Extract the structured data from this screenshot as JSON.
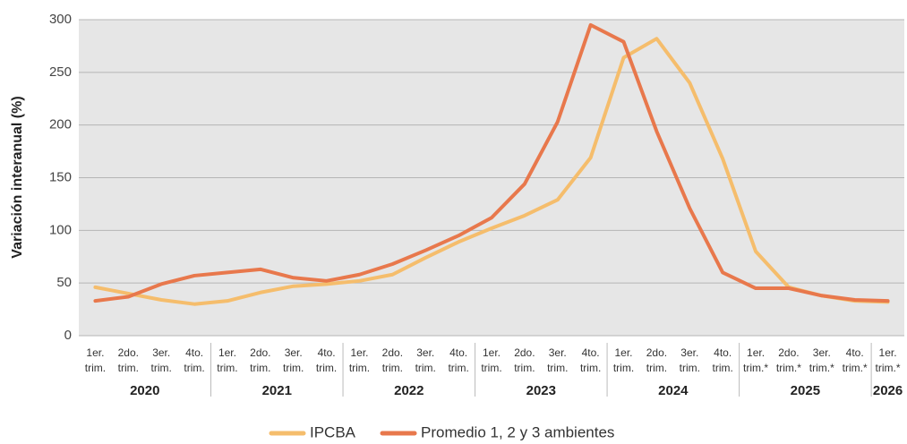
{
  "chart_data": {
    "type": "line",
    "y_label": "Variación interanual (%)",
    "categories": [
      "1er. trim.",
      "2do. trim.",
      "3er. trim.",
      "4to. trim.",
      "1er. trim.",
      "2do. trim.",
      "3er. trim.",
      "4to. trim.",
      "1er. trim.",
      "2do. trim.",
      "3er. trim.",
      "4to. trim.",
      "1er. trim.",
      "2do. trim.",
      "3er. trim.",
      "4to. trim.",
      "1er. trim.",
      "2do. trim.",
      "3er. trim.",
      "4to. trim.",
      "1er. trim.*",
      "2do. trim.*",
      "3er. trim.*",
      "4to. trim.*",
      "1er. trim.*"
    ],
    "groups": [
      {
        "label": "2020",
        "size": 4
      },
      {
        "label": "2021",
        "size": 4
      },
      {
        "label": "2022",
        "size": 4
      },
      {
        "label": "2023",
        "size": 4
      },
      {
        "label": "2024",
        "size": 4
      },
      {
        "label": "2025",
        "size": 4
      },
      {
        "label": "2026",
        "size": 1
      }
    ],
    "series": [
      {
        "name": "IPCBA",
        "color": "#f5bd6c",
        "values": [
          46,
          40,
          34,
          30,
          33,
          41,
          47,
          49,
          52,
          58,
          74,
          89,
          102,
          114,
          129,
          169,
          264,
          282,
          240,
          168,
          80,
          46,
          38,
          33,
          32
        ]
      },
      {
        "name": "Promedio 1, 2 y 3 ambientes",
        "color": "#e8784c",
        "values": [
          33,
          37,
          49,
          57,
          60,
          63,
          55,
          52,
          58,
          68,
          81,
          95,
          112,
          144,
          203,
          295,
          279,
          194,
          121,
          60,
          45,
          45,
          38,
          34,
          33
        ]
      }
    ],
    "ylim": [
      0,
      300
    ],
    "yticks": [
      0,
      50,
      100,
      150,
      200,
      250,
      300
    ],
    "grid": true,
    "legend": "bottom"
  }
}
